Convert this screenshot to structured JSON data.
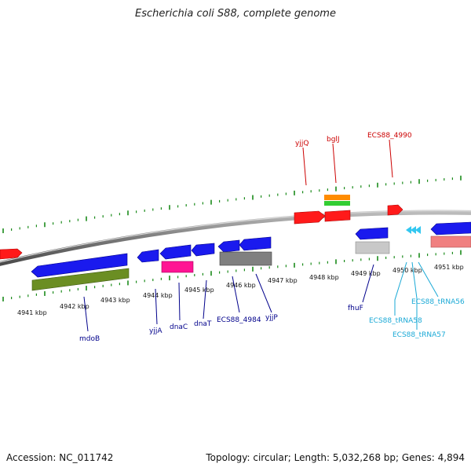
{
  "title": "Escherichia coli S88, complete genome",
  "footer": {
    "accession": "Accession: NC_011742",
    "topology": "Topology: circular; Length: 5,032,268 bp; Genes: 4,894"
  },
  "colors": {
    "backbone": "#8a8a8a",
    "tick": "#1a8a1a",
    "label_red": "#cc0000",
    "label_blue": "#00008b",
    "label_cyan": "#1aa9d6",
    "gene_red": "#ff1a1a",
    "gene_blue": "#1a1aee",
    "gene_olive": "#6b8e23",
    "gene_pink": "#ff1493",
    "gene_gray": "#808080",
    "gene_lightgray": "#c8c8c8",
    "gene_orange": "#ff8c00",
    "gene_green": "#32cd32",
    "gene_cyan": "#33c7f0",
    "gene_salmon": "#f08080"
  },
  "kbp_ticks": [
    {
      "label": "4941 kbp"
    },
    {
      "label": "4942 kbp"
    },
    {
      "label": "4943 kbp"
    },
    {
      "label": "4944 kbp"
    },
    {
      "label": "4945 kbp"
    },
    {
      "label": "4946 kbp"
    },
    {
      "label": "4947 kbp"
    },
    {
      "label": "4948 kbp"
    },
    {
      "label": "4949 kbp"
    },
    {
      "label": "4950 kbp"
    },
    {
      "label": "4951 kbp"
    }
  ],
  "gene_labels": [
    {
      "name": "yjjQ",
      "color": "label_red"
    },
    {
      "name": "bglJ",
      "color": "label_red"
    },
    {
      "name": "ECS88_4990",
      "color": "label_red"
    },
    {
      "name": "mdoB",
      "color": "label_blue"
    },
    {
      "name": "yjjA",
      "color": "label_blue"
    },
    {
      "name": "dnaC",
      "color": "label_blue"
    },
    {
      "name": "dnaT",
      "color": "label_blue"
    },
    {
      "name": "ECS88_4984",
      "color": "label_blue"
    },
    {
      "name": "yjjP",
      "color": "label_blue"
    },
    {
      "name": "fhuF",
      "color": "label_blue"
    },
    {
      "name": "ECS88_tRNA58",
      "color": "label_cyan"
    },
    {
      "name": "ECS88_tRNA56",
      "color": "label_cyan"
    },
    {
      "name": "ECS88_tRNA57",
      "color": "label_cyan"
    }
  ]
}
